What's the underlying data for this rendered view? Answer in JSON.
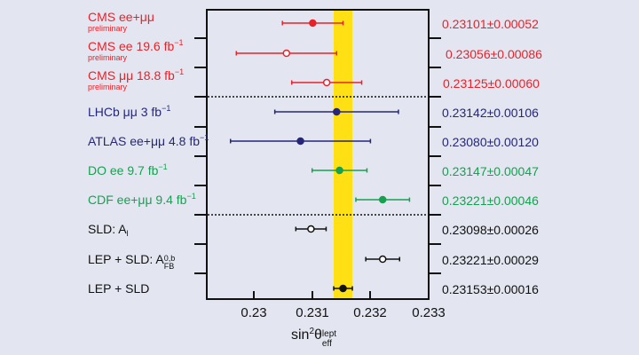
{
  "chart_data": {
    "type": "forest",
    "title": "",
    "xlabel": "sin²θ_eff^lept",
    "ylabel": "",
    "xlim": [
      0.2292,
      0.233
    ],
    "xticks": [
      "0.23",
      "0.231",
      "0.232",
      "0.233"
    ],
    "xtick_values": [
      0.23,
      0.231,
      0.232,
      0.233
    ],
    "band": {
      "center": 0.23153,
      "halfwidth": 0.00016,
      "color": "#ffe014"
    },
    "grid": false,
    "separators_after_rows": [
      2,
      6
    ],
    "series": [
      {
        "name": "CMS ee+μμ",
        "note": "preliminary",
        "value": 0.23101,
        "error": 0.00052,
        "display": "0.23101±0.00052",
        "marker": "filled",
        "color": "#e8222a"
      },
      {
        "name": "CMS ee 19.6 fb⁻¹",
        "note": "preliminary",
        "value": 0.23056,
        "error": 0.00086,
        "display": "0.23056±0.00086",
        "marker": "open",
        "color": "#e8222a"
      },
      {
        "name": "CMS μμ 18.8 fb⁻¹",
        "note": "preliminary",
        "value": 0.23125,
        "error": 0.0006,
        "display": "0.23125±0.00060",
        "marker": "open",
        "color": "#e8222a"
      },
      {
        "name": "LHCb μμ 3 fb⁻¹",
        "note": "",
        "value": 0.23142,
        "error": 0.00106,
        "display": "0.23142±0.00106",
        "marker": "filled",
        "color": "#26267a"
      },
      {
        "name": "ATLAS ee+μμ 4.8 fb⁻¹",
        "note": "",
        "value": 0.2308,
        "error": 0.0012,
        "display": "0.23080±0.00120",
        "marker": "filled",
        "color": "#26267a"
      },
      {
        "name": "D0 ee 9.7 fb⁻¹",
        "note": "",
        "value": 0.23147,
        "error": 0.00047,
        "display": "0.23147±0.00047",
        "marker": "filled",
        "color": "#16a150"
      },
      {
        "name": "CDF ee+μμ 9.4 fb⁻¹",
        "note": "",
        "value": 0.23221,
        "error": 0.00046,
        "display": "0.23221±0.00046",
        "marker": "filled",
        "color": "#16a150"
      },
      {
        "name": "SLD: A_l",
        "note": "",
        "value": 0.23098,
        "error": 0.00026,
        "display": "0.23098±0.00026",
        "marker": "open",
        "color": "#111111"
      },
      {
        "name": "LEP + SLD: A_FB^0,b",
        "note": "",
        "value": 0.23221,
        "error": 0.00029,
        "display": "0.23221±0.00029",
        "marker": "open",
        "color": "#111111"
      },
      {
        "name": "LEP + SLD",
        "note": "",
        "value": 0.23153,
        "error": 0.00016,
        "display": "0.23153±0.00016",
        "marker": "filled",
        "color": "#111111"
      }
    ]
  },
  "labels": {
    "r0": {
      "main": "CMS ee+μμ",
      "sub": "preliminary"
    },
    "r1": {
      "main": "CMS ee 19.6 fb",
      "sup": "−1",
      "sub": "preliminary"
    },
    "r2": {
      "main": "CMS μμ 18.8 fb",
      "sup": "−1",
      "sub": "preliminary"
    },
    "r3": {
      "main": "LHCb μμ 3 fb",
      "sup": "−1"
    },
    "r4": {
      "main": "ATLAS ee+μμ 4.8 fb",
      "sup": "−1"
    },
    "r5": {
      "main": "DO ee 9.7 fb",
      "sup": "−1"
    },
    "r6": {
      "main": "CDF ee+μμ 9.4 fb",
      "sup": "−1"
    },
    "r7": {
      "main": "SLD: A",
      "subscript": "l"
    },
    "r8": {
      "main": "LEP + SLD: A",
      "subscript": "FB",
      "sup": "0,b"
    },
    "r9": {
      "main": "LEP + SLD"
    }
  },
  "values": [
    "0.23101±0.00052",
    "0.23056±0.00086",
    "0.23125±0.00060",
    "0.23142±0.00106",
    "0.23080±0.00120",
    "0.23147±0.00047",
    "0.23221±0.00046",
    "0.23098±0.00026",
    "0.23221±0.00029",
    "0.23153±0.00016"
  ],
  "axis": {
    "ticks": [
      "0.23",
      "0.231",
      "0.232",
      "0.233"
    ],
    "xlabel_main": "sin",
    "xlabel_sq": "2",
    "xlabel_theta": "θ",
    "xlabel_sup": "lept",
    "xlabel_sub": "eff"
  },
  "colors": {
    "cms": "#e8222a",
    "lhcb_atlas": "#26267a",
    "tevatron": "#16a150",
    "lep_sld": "#111111",
    "band": "#ffe014",
    "background": "#e3e6f0"
  }
}
